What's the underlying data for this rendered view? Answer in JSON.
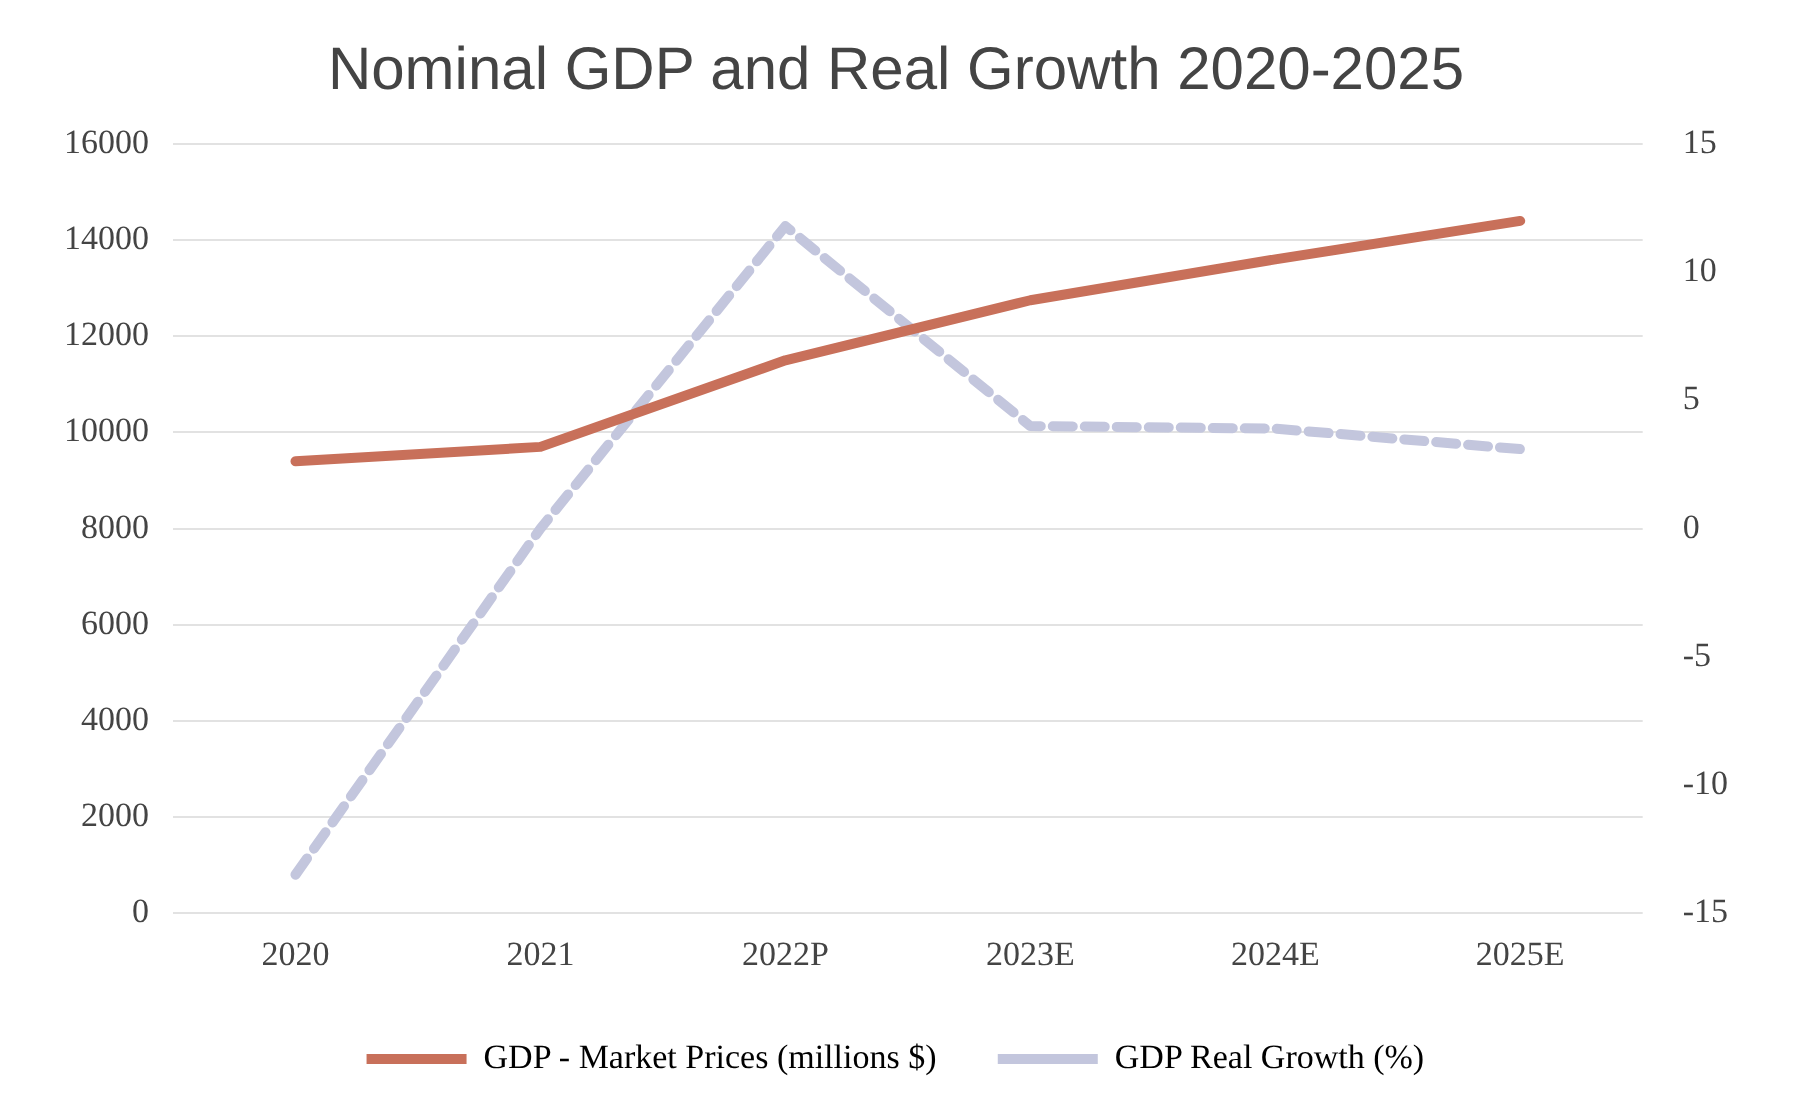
{
  "chart_data": {
    "type": "line",
    "title": "Nominal GDP and Real Growth 2020-2025",
    "categories": [
      "2020",
      "2021",
      "2022P",
      "2023E",
      "2024E",
      "2025E"
    ],
    "series": [
      {
        "name": "GDP - Market Prices (millions $)",
        "color": "#c8705a",
        "values": [
          9400,
          9700,
          11500,
          12750,
          13600,
          14400
        ],
        "line_style": "solid"
      },
      {
        "name": "GDP Real Growth (%)",
        "color": "#c3c6dd",
        "values": [
          -13.5,
          0,
          11.8,
          4,
          3.9,
          3.1
        ],
        "axis": "y2",
        "line_style": "dashed"
      }
    ],
    "ylim": [
      0,
      16000
    ],
    "yticks": [
      0,
      2000,
      4000,
      6000,
      8000,
      10000,
      12000,
      14000,
      16000
    ],
    "y2lim": [
      -15,
      15
    ],
    "y2ticks": [
      -15,
      -10,
      -5,
      0,
      5,
      10,
      15
    ],
    "grid": "y",
    "legend": "bottom",
    "marker": "none"
  }
}
